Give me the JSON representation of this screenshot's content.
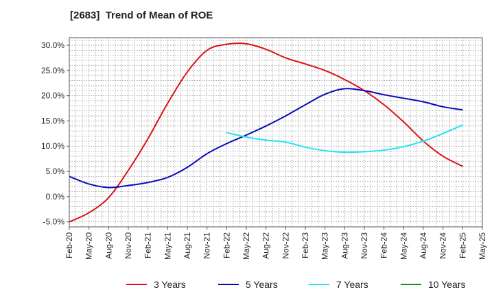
{
  "title": "[2683]  Trend of Mean of ROE",
  "chart_data": {
    "type": "line",
    "title": "[2683]  Trend of Mean of ROE",
    "xlabel": "",
    "ylabel": "",
    "ylim": [
      -6,
      31.5
    ],
    "y_ticks": [
      -5,
      0,
      5,
      10,
      15,
      20,
      25,
      30
    ],
    "y_tick_labels": [
      "-5.0%",
      "0.0%",
      "5.0%",
      "10.0%",
      "15.0%",
      "20.0%",
      "25.0%",
      "30.0%"
    ],
    "x_tick_labels": [
      "Feb-20",
      "May-20",
      "Aug-20",
      "Nov-20",
      "Feb-21",
      "May-21",
      "Aug-21",
      "Nov-21",
      "Feb-22",
      "May-22",
      "Aug-22",
      "Nov-22",
      "Feb-23",
      "May-23",
      "Aug-23",
      "Nov-23",
      "Feb-24",
      "May-24",
      "Aug-24",
      "Nov-24",
      "Feb-25",
      "May-25"
    ],
    "grid": true,
    "legend_position": "bottom",
    "series": [
      {
        "name": "3 Years",
        "color": "#dd1111",
        "values": [
          -5.0,
          -3.2,
          -0.2,
          5.2,
          11.5,
          18.5,
          24.7,
          29.0,
          30.2,
          30.3,
          29.2,
          27.5,
          26.3,
          25.0,
          23.2,
          21.0,
          18.2,
          14.8,
          11.0,
          8.0,
          6.0
        ]
      },
      {
        "name": "5 Years",
        "color": "#0a0ab5",
        "values": [
          4.0,
          2.5,
          1.8,
          2.2,
          2.8,
          3.8,
          5.8,
          8.5,
          10.5,
          12.2,
          14.0,
          16.0,
          18.2,
          20.3,
          21.4,
          21.0,
          20.2,
          19.5,
          18.8,
          17.8,
          17.2
        ]
      },
      {
        "name": "7 Years",
        "color": "#22e5ee",
        "values": [
          null,
          null,
          null,
          null,
          null,
          null,
          null,
          null,
          12.7,
          11.8,
          11.2,
          10.8,
          9.8,
          9.1,
          8.8,
          8.9,
          9.2,
          9.9,
          11.0,
          12.5,
          14.2
        ]
      },
      {
        "name": "10 Years",
        "color": "#1a8a1a",
        "values": [
          null,
          null,
          null,
          null,
          null,
          null,
          null,
          null,
          null,
          null,
          null,
          null,
          null,
          null,
          null,
          null,
          null,
          null,
          null,
          null,
          null
        ]
      }
    ]
  }
}
